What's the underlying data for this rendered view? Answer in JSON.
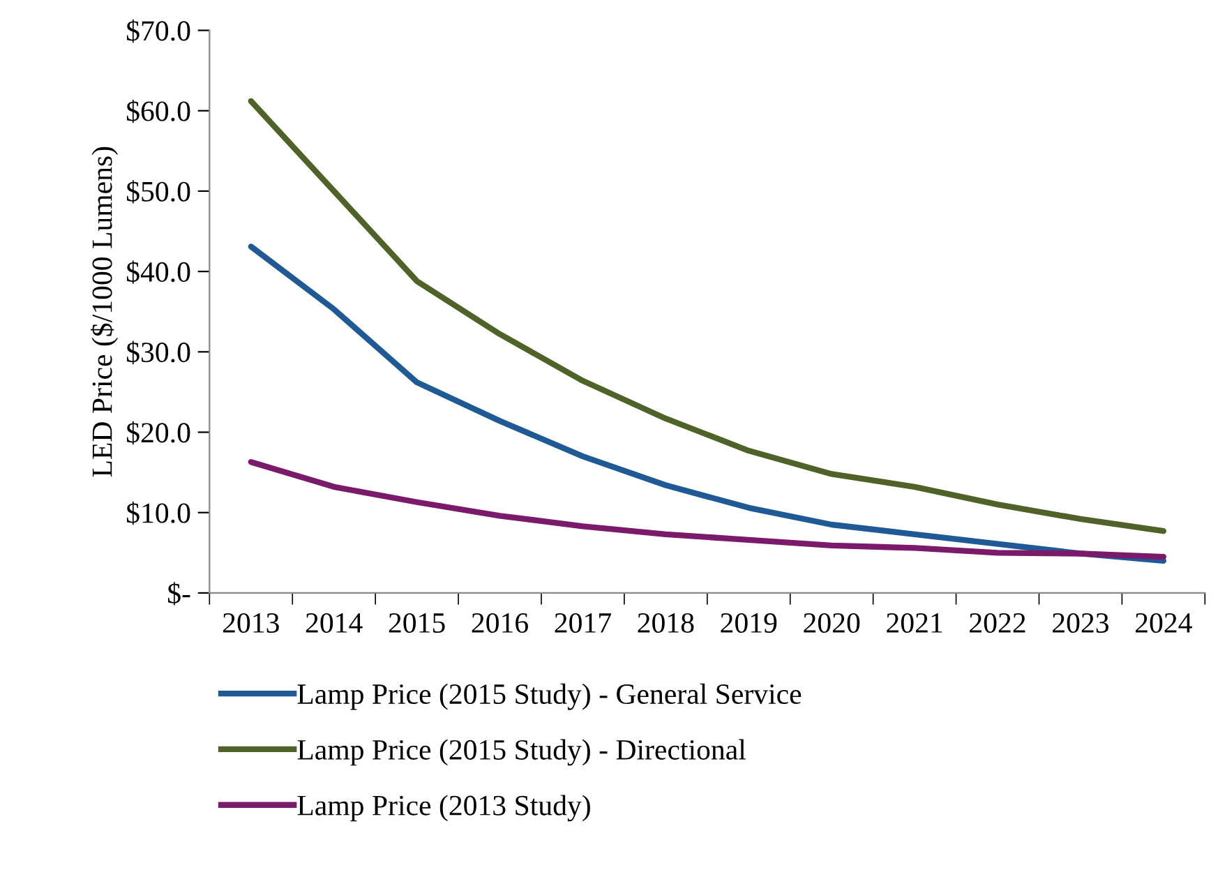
{
  "chart_data": {
    "type": "line",
    "ylabel": "LED Price ($/1000 Lumens)",
    "categories": [
      "2013",
      "2014",
      "2015",
      "2016",
      "2017",
      "2018",
      "2019",
      "2020",
      "2021",
      "2022",
      "2023",
      "2024"
    ],
    "series": [
      {
        "name": "Lamp Price (2015 Study) - General Service",
        "color": "#1f5a96",
        "values": [
          43.1,
          35.3,
          26.2,
          21.4,
          17.0,
          13.4,
          10.6,
          8.5,
          7.3,
          6.1,
          4.9,
          4.0
        ]
      },
      {
        "name": "Lamp Price (2015 Study) - Directional",
        "color": "#4f6228",
        "values": [
          61.2,
          50.0,
          38.8,
          32.2,
          26.4,
          21.7,
          17.7,
          14.8,
          13.2,
          11.0,
          9.2,
          7.7
        ]
      },
      {
        "name": "Lamp Price (2013 Study)",
        "color": "#7b1a6b",
        "values": [
          16.3,
          13.2,
          11.3,
          9.6,
          8.3,
          7.3,
          6.6,
          5.9,
          5.6,
          5.0,
          4.9,
          4.5
        ]
      }
    ],
    "ylim": [
      0,
      70
    ],
    "yticks": [
      {
        "value": 0,
        "label": "$-"
      },
      {
        "value": 10,
        "label": "$10.0"
      },
      {
        "value": 20,
        "label": "$20.0"
      },
      {
        "value": 30,
        "label": "$30.0"
      },
      {
        "value": 40,
        "label": "$40.0"
      },
      {
        "value": 50,
        "label": "$50.0"
      },
      {
        "value": 60,
        "label": "$60.0"
      },
      {
        "value": 70,
        "label": "$70.0"
      }
    ],
    "grid": false,
    "legend": "bottom",
    "marker": "none",
    "line_style": "solid"
  }
}
